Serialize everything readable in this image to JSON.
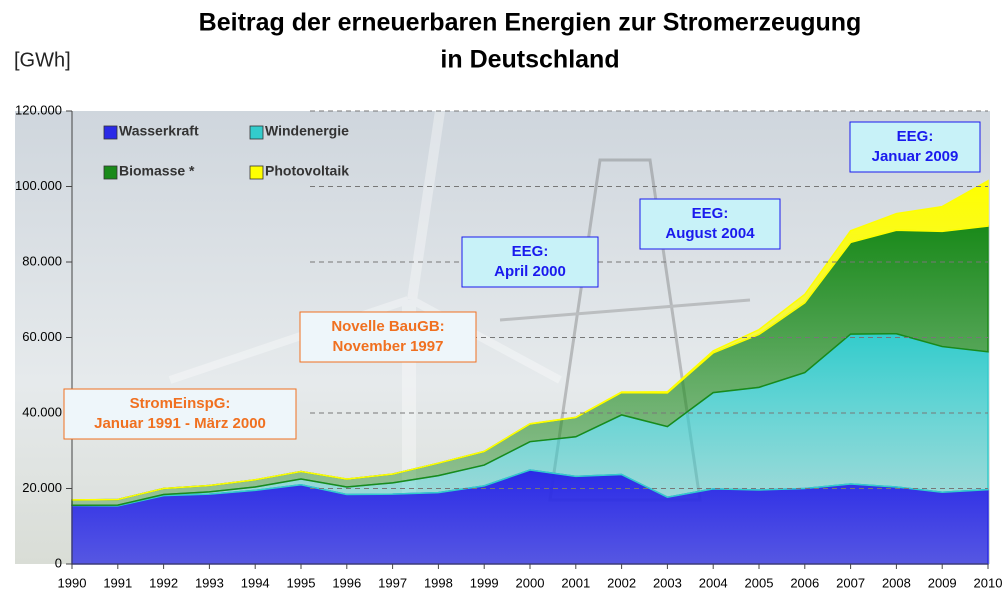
{
  "chart_data": {
    "type": "stacked-area",
    "title": [
      "Beitrag der erneuerbaren Energien zur Stromerzeugung",
      "in Deutschland"
    ],
    "y_label": "[GWh]",
    "x": [
      1990,
      1991,
      1992,
      1993,
      1994,
      1995,
      1996,
      1997,
      1998,
      1999,
      2000,
      2001,
      2002,
      2003,
      2004,
      2005,
      2006,
      2007,
      2008,
      2009,
      2010
    ],
    "xlim": [
      1990,
      2010
    ],
    "xticks": [
      1990,
      1991,
      1992,
      1993,
      1994,
      1995,
      1996,
      1997,
      1998,
      1999,
      2000,
      2001,
      2002,
      2003,
      2004,
      2005,
      2006,
      2007,
      2008,
      2009,
      2010
    ],
    "ylim": [
      0,
      120000
    ],
    "yticks": [
      0,
      {
        "value": 20000,
        "label": "20.000"
      },
      {
        "value": 40000,
        "label": "40.000"
      },
      {
        "value": 60000,
        "label": "60.000"
      },
      {
        "value": 80000,
        "label": "80.000"
      },
      {
        "value": 100000,
        "label": "100.000"
      },
      {
        "value": 120000,
        "label": "120.000"
      }
    ],
    "grid": true,
    "series": [
      {
        "name": "Wasserkraft",
        "color": "#2a2ae6",
        "values": [
          15500,
          15400,
          18100,
          18500,
          19500,
          21000,
          18400,
          18500,
          18900,
          20700,
          24900,
          23200,
          23700,
          17700,
          19900,
          19600,
          20000,
          21200,
          20400,
          19000,
          19700
        ]
      },
      {
        "name": "Windenergie",
        "color": "#33cccc",
        "values": [
          70,
          200,
          300,
          600,
          900,
          1500,
          2000,
          3000,
          4500,
          5500,
          7500,
          10500,
          15800,
          18700,
          25500,
          27200,
          30700,
          39700,
          40600,
          38600,
          36500
        ]
      },
      {
        "name": "Biomasse *",
        "color": "#1a8a1a",
        "values": [
          1400,
          1500,
          1600,
          1700,
          1900,
          2000,
          2100,
          2300,
          3300,
          3600,
          4700,
          5100,
          5900,
          8900,
          10500,
          14000,
          18500,
          24300,
          27400,
          30500,
          33300
        ]
      },
      {
        "name": "Photovoltaik",
        "color": "#ffff00",
        "values": [
          1,
          2,
          3,
          6,
          7,
          11,
          16,
          26,
          32,
          42,
          64,
          76,
          162,
          313,
          557,
          1282,
          2220,
          3075,
          4420,
          6583,
          12000
        ]
      }
    ],
    "annotations": [
      {
        "lines": [
          "StromEinspG:",
          "Januar 1991 - März 2000"
        ],
        "color": "#f07020"
      },
      {
        "lines": [
          "Novelle BauGB:",
          "November 1997"
        ],
        "color": "#f07020"
      },
      {
        "lines": [
          "EEG:",
          "April 2000"
        ],
        "color": "#1a1aee"
      },
      {
        "lines": [
          "EEG:",
          "August  2004"
        ],
        "color": "#1a1aee"
      },
      {
        "lines": [
          "EEG:",
          "Januar 2009"
        ],
        "color": "#1a1aee"
      }
    ]
  }
}
